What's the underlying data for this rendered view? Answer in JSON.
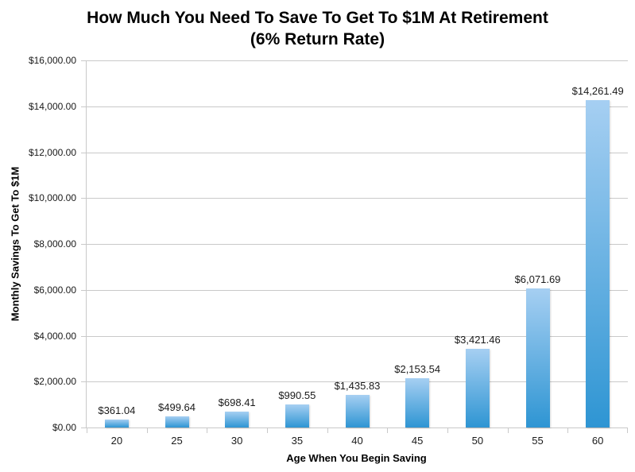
{
  "chart_data": {
    "type": "bar",
    "title": "How Much You Need To Save To Get To $1M At Retirement (6% Return Rate)",
    "title_line1": "How Much You Need To Save To Get To $1M At Retirement",
    "title_line2": "(6% Return Rate)",
    "xlabel": "Age When You Begin Saving",
    "ylabel": "Monthly Savings To Get To $1M",
    "categories": [
      "20",
      "25",
      "30",
      "35",
      "40",
      "45",
      "50",
      "55",
      "60"
    ],
    "values": [
      361.04,
      499.64,
      698.41,
      990.55,
      1435.83,
      2153.54,
      3421.46,
      6071.69,
      14261.49
    ],
    "data_labels": [
      "$361.04",
      "$499.64",
      "$698.41",
      "$990.55",
      "$1,435.83",
      "$2,153.54",
      "$3,421.46",
      "$6,071.69",
      "$14,261.49"
    ],
    "ylim": [
      0,
      16000
    ],
    "ytick_step": 2000,
    "ytick_labels": [
      "$0.00",
      "$2,000.00",
      "$4,000.00",
      "$6,000.00",
      "$8,000.00",
      "$10,000.00",
      "$12,000.00",
      "$14,000.00",
      "$16,000.00"
    ],
    "grid": true,
    "legend_position": "none",
    "colors": {
      "bar_gradient_top": "#a6cff2",
      "bar_gradient_bottom": "#2e95d3",
      "gridline": "#c9c9c9",
      "axis_line": "#c9c9c9",
      "tick_label_text": "#1a1a1a",
      "title_text": "#000000"
    }
  }
}
